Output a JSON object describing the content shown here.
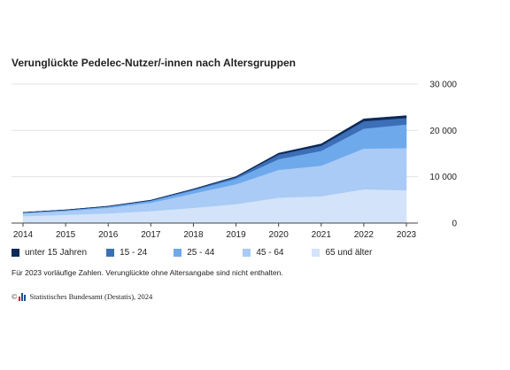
{
  "title": "Verunglückte Pedelec-Nutzer/-innen nach Altersgruppen",
  "note": "Für 2023 vorläufige Zahlen. Verunglückte ohne Altersangabe sind nicht enthalten.",
  "source": {
    "copyright": "©",
    "text": "Statistisches Bundesamt (Destatis), 2024"
  },
  "chart_data": {
    "type": "area",
    "stacked": true,
    "x": [
      "2014",
      "2015",
      "2016",
      "2017",
      "2018",
      "2019",
      "2020",
      "2021",
      "2022",
      "2023"
    ],
    "ylim": [
      0,
      30000
    ],
    "yticks": [
      0,
      10000,
      20000,
      30000
    ],
    "ytick_labels": [
      "0",
      "10 000",
      "20 000",
      "30 000"
    ],
    "y_axis_position": "right",
    "grid": true,
    "legend_position": "bottom",
    "series": [
      {
        "name": "65 und älter",
        "color": "#d3e3fa",
        "values": [
          1500,
          1800,
          2100,
          2600,
          3300,
          4100,
          5500,
          5800,
          7300,
          7100
        ]
      },
      {
        "name": "45 - 64",
        "color": "#a9cbf5",
        "values": [
          600,
          800,
          1200,
          1800,
          3100,
          4300,
          6000,
          6600,
          8800,
          9100
        ]
      },
      {
        "name": "25 - 44",
        "color": "#6ea9ec",
        "values": [
          140,
          180,
          250,
          400,
          700,
          1200,
          2300,
          3200,
          4300,
          5100
        ]
      },
      {
        "name": "15 - 24",
        "color": "#3c6fb7",
        "values": [
          50,
          60,
          80,
          120,
          200,
          300,
          1000,
          1100,
          1600,
          1400
        ]
      },
      {
        "name": "unter 15 Jahren",
        "color": "#0e2a57",
        "values": [
          20,
          25,
          30,
          40,
          70,
          150,
          300,
          400,
          500,
          500
        ]
      }
    ]
  }
}
